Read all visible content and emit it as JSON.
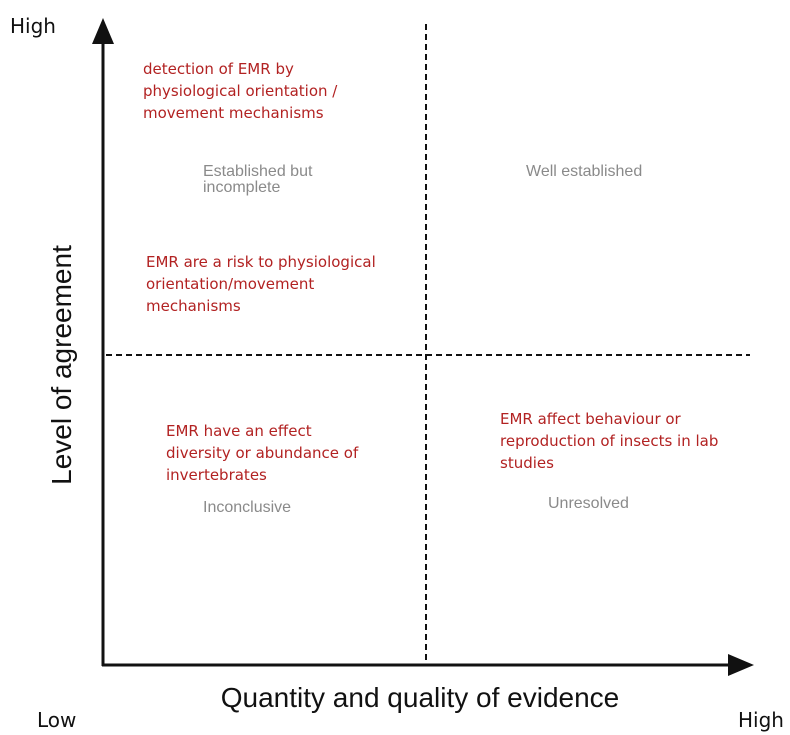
{
  "axes": {
    "x_label": "Quantity and quality of evidence",
    "y_label": "Level of agreement",
    "y_high": "High",
    "origin_low": "Low",
    "x_high": "High"
  },
  "quadrants": {
    "top_left": "Established but incomplete",
    "top_right": "Well established",
    "bottom_left": "Inconclusive",
    "bottom_right": "Unresolved"
  },
  "statements": {
    "s1_line1": "detection of EMR by",
    "s1_line2": "physiological orientation /",
    "s1_line3": "movement mechanisms",
    "s2_line1": "EMR are a risk to physiological",
    "s2_line2": "orientation/movement",
    "s2_line3": "mechanisms",
    "s3_line1": "EMR have an effect",
    "s3_line2": "diversity or abundance of",
    "s3_line3": "invertebrates",
    "s4_line1": "EMR affect behaviour or",
    "s4_line2": "reproduction of insects in lab",
    "s4_line3": "studies"
  },
  "colors": {
    "statement_text": "#b22222",
    "quadrant_text": "#8a8a8a",
    "axis": "#111111"
  }
}
